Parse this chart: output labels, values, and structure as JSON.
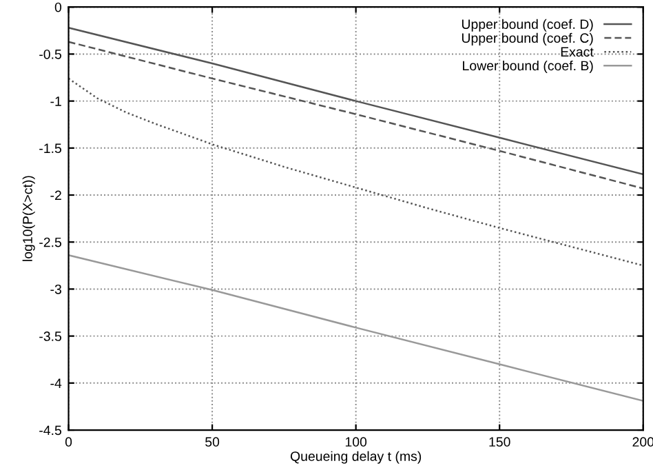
{
  "chart_data": {
    "type": "line",
    "xlabel": "Queueing delay t (ms)",
    "ylabel": "log10(P(X>ct))",
    "xlim": [
      0,
      200
    ],
    "ylim": [
      -4.5,
      0
    ],
    "xticks": [
      0,
      50,
      100,
      150,
      200
    ],
    "yticks": [
      0,
      -0.5,
      -1,
      -1.5,
      -2,
      -2.5,
      -3,
      -3.5,
      -4,
      -4.5
    ],
    "grid": true,
    "legend": "top right",
    "marker": "none",
    "series": [
      {
        "name": "Upper bound (coef. D)",
        "color": "#555555",
        "line_style": "solid",
        "x": [
          0,
          50,
          100,
          150,
          200
        ],
        "values": [
          -0.22,
          -0.6,
          -1.0,
          -1.39,
          -1.78
        ]
      },
      {
        "name": "Upper bound (coef. C)",
        "color": "#555555",
        "line_style": "dashed",
        "x": [
          0,
          50,
          100,
          150,
          200
        ],
        "values": [
          -0.37,
          -0.76,
          -1.14,
          -1.53,
          -1.93
        ]
      },
      {
        "name": "Exact",
        "color": "#555555",
        "line_style": "dotted",
        "x": [
          0,
          10,
          20,
          30,
          50,
          75,
          100,
          125,
          150,
          175,
          200
        ],
        "values": [
          -0.76,
          -0.97,
          -1.12,
          -1.24,
          -1.46,
          -1.7,
          -1.92,
          -2.14,
          -2.35,
          -2.55,
          -2.75
        ]
      },
      {
        "name": "Lower bound (coef. B)",
        "color": "#999999",
        "line_style": "solid",
        "x": [
          0,
          50,
          100,
          150,
          200
        ],
        "values": [
          -2.64,
          -3.01,
          -3.41,
          -3.8,
          -4.19
        ]
      }
    ]
  }
}
